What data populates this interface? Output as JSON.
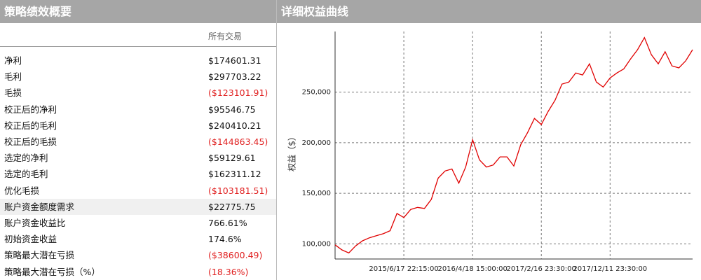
{
  "summary": {
    "title": "策略绩效概要",
    "column": "所有交易",
    "rows": [
      [
        "净利",
        "$174601.31"
      ],
      [
        "毛利",
        "$297703.22"
      ],
      [
        "毛损",
        "($123101.91)"
      ],
      [
        "校正后的净利",
        "$95546.75"
      ],
      [
        "校正后的毛利",
        "$240410.21"
      ],
      [
        "校正后的毛损",
        "($144863.45)"
      ],
      [
        "选定的净利",
        "$59129.61"
      ],
      [
        "选定的毛利",
        "$162311.12"
      ],
      [
        "优化毛损",
        "($103181.51)"
      ],
      [
        "账户资金额度需求",
        "$22775.75"
      ],
      [
        "账户资金收益比",
        "766.61%"
      ],
      [
        "初始资金收益",
        "174.6%"
      ],
      [
        "策略最大潜在亏损",
        "($38600.49)"
      ],
      [
        "策略最大潜在亏损（%）",
        "(18.36%)"
      ]
    ]
  },
  "chart_data": {
    "type": "line",
    "title": "详细权益曲线",
    "y_label": "权益（$）",
    "x": [
      null,
      null,
      null,
      null,
      null,
      null,
      null,
      null,
      null,
      null,
      "2015/6/17 22:15:00",
      null,
      null,
      null,
      null,
      null,
      null,
      null,
      null,
      null,
      "2016/4/18 15:00:00",
      null,
      null,
      null,
      null,
      null,
      null,
      null,
      null,
      null,
      "2017/2/16 23:30:00",
      null,
      null,
      null,
      null,
      null,
      null,
      null,
      null,
      null,
      "2017/12/11 23:30:00",
      null,
      null,
      null,
      null,
      null,
      null,
      null,
      null,
      null,
      null,
      null,
      null
    ],
    "values": [
      99000,
      94000,
      91000,
      98000,
      103000,
      106000,
      108000,
      110000,
      113000,
      130000,
      126000,
      134000,
      136000,
      135000,
      144000,
      165000,
      172000,
      174000,
      160000,
      176000,
      203000,
      183000,
      176000,
      178000,
      186000,
      186000,
      177000,
      198000,
      210000,
      224000,
      218000,
      231000,
      242000,
      258000,
      260000,
      269000,
      267000,
      278000,
      260000,
      255000,
      264000,
      269000,
      273000,
      283000,
      292000,
      304000,
      287000,
      278000,
      290000,
      276000,
      274000,
      281000,
      292000
    ],
    "color": "#e00000",
    "ylim": [
      85000,
      310000
    ],
    "yticks": [
      {
        "value": 100000,
        "label": "100,000"
      },
      {
        "value": 150000,
        "label": "150,000"
      },
      {
        "value": 200000,
        "label": "200,000"
      },
      {
        "value": 250000,
        "label": "250,000"
      }
    ],
    "grid": true
  }
}
